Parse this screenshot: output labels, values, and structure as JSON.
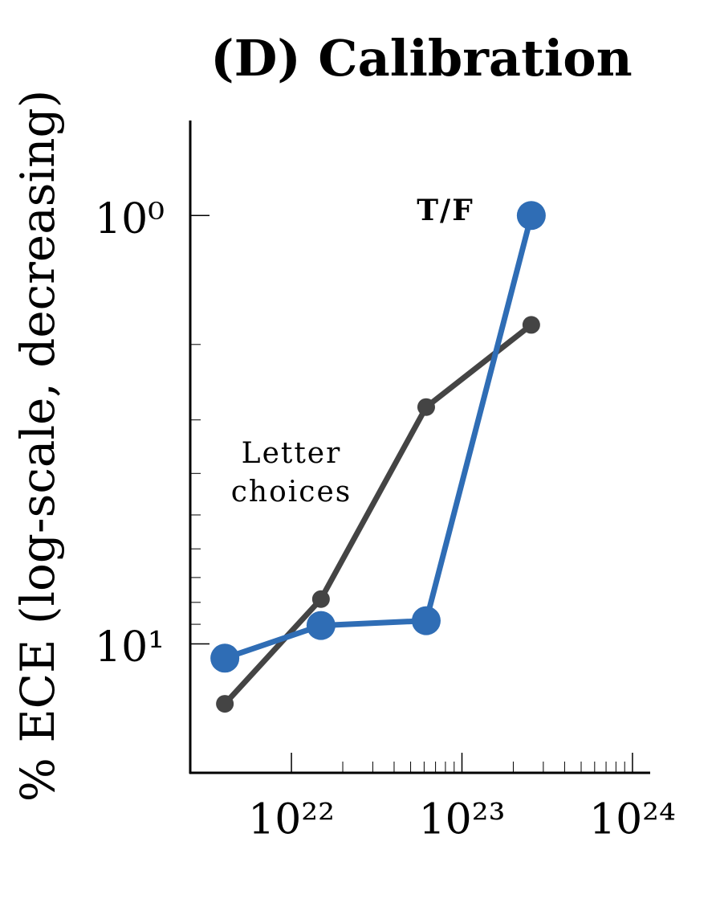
{
  "chart_data": {
    "type": "line",
    "title": "(D) Calibration",
    "y_label": "% ECE (log-scale, decreasing)",
    "x_scale": "log",
    "y_scale": "log",
    "y_inverted": true,
    "xlim": [
      2.55e+21,
      1.27e+24
    ],
    "ylim": [
      0.6,
      20
    ],
    "xticks": [
      {
        "value": 1e+22,
        "label": "10²²"
      },
      {
        "value": 1e+23,
        "label": "10²³"
      },
      {
        "value": 1e+24,
        "label": "10²⁴"
      }
    ],
    "yticks": [
      {
        "value": 1,
        "label": "10⁰"
      },
      {
        "value": 10,
        "label": "10¹"
      }
    ],
    "xminor_ticks": [
      2e+22,
      3e+22,
      4e+22,
      5e+22,
      6e+22,
      7e+22,
      8e+22,
      9e+22,
      2e+23,
      3e+23,
      4e+23,
      5e+23,
      6e+23,
      7e+23,
      8e+23,
      9e+23
    ],
    "yminor_ticks": [
      2,
      3,
      4,
      5,
      6,
      7,
      8,
      9
    ],
    "x": [
      4.07e+21,
      1.49e+22,
      6.17e+22,
      2.55e+23
    ],
    "series": [
      {
        "name": "Letter choices",
        "color": "#444444",
        "values": [
          13.8,
          7.86,
          2.8,
          1.8
        ]
      },
      {
        "name": "T/F",
        "color": "#2f6db5",
        "values": [
          10.8,
          9.06,
          8.83,
          1.0
        ]
      }
    ]
  }
}
